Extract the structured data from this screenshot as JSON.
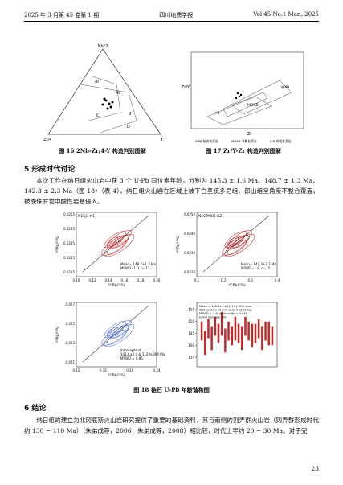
{
  "header": {
    "left": "2025 年 3 月第 45 卷第 1 期",
    "center": "四川地质学报",
    "right": "Vol.45 No.1 Mar., 2025"
  },
  "fig16": {
    "apex_top": "Nb*2",
    "apex_left": "Zr/4",
    "apex_right": "Y",
    "fields": [
      "AI",
      "AII",
      "B",
      "C",
      "D"
    ],
    "caption": "图 16 2Nb-Zr/4-Y 构造判别图解"
  },
  "fig17": {
    "y_label": "Zr/Y",
    "x_label": "Zr",
    "fields": [
      "WPB",
      "MORB",
      "IAB"
    ],
    "legend": [
      "WPB 板内玄武岩",
      "MORB 洋脊玄武岩",
      "IAB 岛弧玄武岩"
    ],
    "caption": "图 17 Zr/Y-Zr 构造判别图解"
  },
  "section5": {
    "heading": "5 形成时代讨论",
    "paragraph": "本次工作在纳日组火山岩中获 3 个 U-Pb 同位素年龄，分别为 145.3 ± 1.6 Ma、148.7 ± 1.3 Ma、142.3 ± 2.3 Ma（图 18）（表 4），纳日组火山岩在区域上被下白垩统多尼组、郎山组呈角度不整合覆盖，被晚侏罗世中酸性岩基侵入。"
  },
  "fig18": {
    "panels": [
      {
        "title": "NECJ3-K1",
        "box": [
          "Mean= 148.7±1.3 Ma",
          "MSWD=1.0, n=17"
        ],
        "x_label": "²⁰⁷Pb/²³⁵U",
        "y_label": "²⁰⁶Pb/²³⁸U",
        "xticks": [
          "0.10",
          "0.12",
          "0.14",
          "0.16",
          "0.18",
          "0.20"
        ],
        "yticks": [
          "0.0255",
          "0.0245",
          "0.0235",
          "0.0225",
          "0.0215"
        ]
      },
      {
        "title": "NECPM01-N2",
        "box": [
          "Mean= 142.3±2.3 Ma",
          "MSWD=1.9, n=15"
        ],
        "x_label": "²⁰⁷Pb/²³⁵U",
        "y_label": "²⁰⁶Pb/²³⁸U",
        "xticks": [
          "0.1",
          "0.2",
          "0.3",
          "0.4"
        ],
        "yticks": [
          "0.0250",
          "0.0240",
          "0.0230",
          "0.0220"
        ]
      },
      {
        "box": [
          "Intercepts at",
          "142.6±2.4 & 1129±300 Ma",
          "MSWD = 0.96"
        ],
        "x_label": "²⁰⁷Pb/²³⁵U",
        "y_label": "²⁰⁶Pb/²³⁸U",
        "xticks": [
          "0.12",
          "0.16",
          "0.20",
          "0.24"
        ],
        "yticks": [
          "0.027",
          "0.025",
          "0.023",
          "0.021"
        ]
      },
      {
        "box": [
          "Mean = 145.3±1.6 [1.1%] 95% conf.",
          "Wtd by data-pt errs only, 0 of 22 rej.",
          "MSWD = 1.6, probability = 0.046",
          "(error bars are 2σ)"
        ],
        "ylim": [
          131,
          158
        ],
        "yticks": [
          135,
          140,
          145,
          150,
          155
        ],
        "values": [
          146,
          141,
          147,
          143,
          148,
          145,
          149,
          142,
          146,
          144,
          147,
          145,
          143,
          148,
          146,
          144,
          145,
          147,
          143,
          146,
          145,
          144
        ],
        "errors": [
          4,
          5,
          4,
          5,
          4,
          4,
          5,
          5,
          4,
          4,
          5,
          4,
          5,
          4,
          4,
          5,
          4,
          4,
          5,
          4,
          5,
          4
        ]
      }
    ],
    "caption": "图 18 锆石 U-Pb 年龄谐和图"
  },
  "section6": {
    "heading": "6 结论",
    "paragraph": "纳日组的建立为北冈底斯火山岩研究提供了重要的基础资料，其与南侧的则弄群火山岩（则弄群形成时代约 130 ~ 110 Ma）（朱弟成等，2006；朱弟成等，2008）相比较，时代上早约 20 ~ 30 Ma。对于完"
  },
  "page_number": "23"
}
